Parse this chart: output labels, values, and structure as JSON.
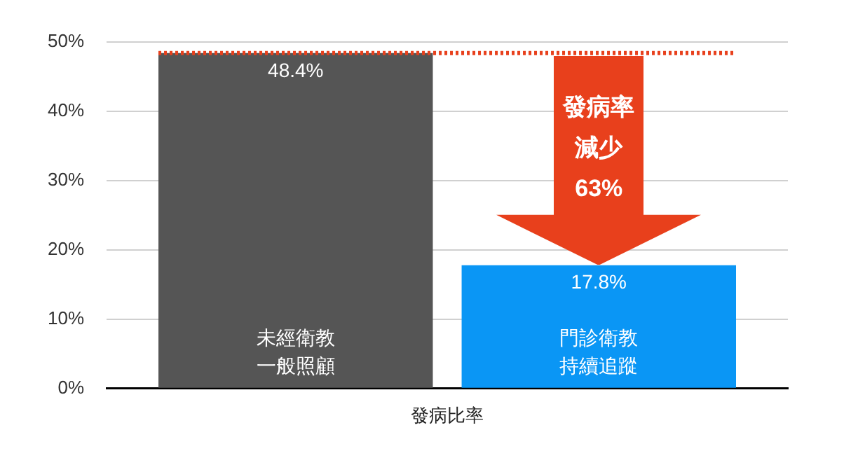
{
  "chart_data": {
    "type": "bar",
    "categories": [
      "發病比率"
    ],
    "series": [
      {
        "name": "未經衛教一般照顧",
        "color": "#555555",
        "values": [
          48.4
        ],
        "value_labels": [
          "48.4%"
        ]
      },
      {
        "name": "門診衛教持續追蹤",
        "color": "#0a96f5",
        "values": [
          17.8
        ],
        "value_labels": [
          "17.8%"
        ]
      }
    ],
    "ylim": [
      0,
      50
    ],
    "yticks": [
      {
        "value": 0,
        "label": "0%"
      },
      {
        "value": 10,
        "label": "10%"
      },
      {
        "value": 20,
        "label": "20%"
      },
      {
        "value": 30,
        "label": "30%"
      },
      {
        "value": 40,
        "label": "40%"
      },
      {
        "value": 50,
        "label": "50%"
      }
    ],
    "grid": "y",
    "legend": false,
    "ref_lines": [
      {
        "axis": "y",
        "value": 48.4,
        "color": "#e8401c",
        "line_style": "dotted"
      }
    ],
    "annotations": [
      "發病率減少63%"
    ]
  }
}
